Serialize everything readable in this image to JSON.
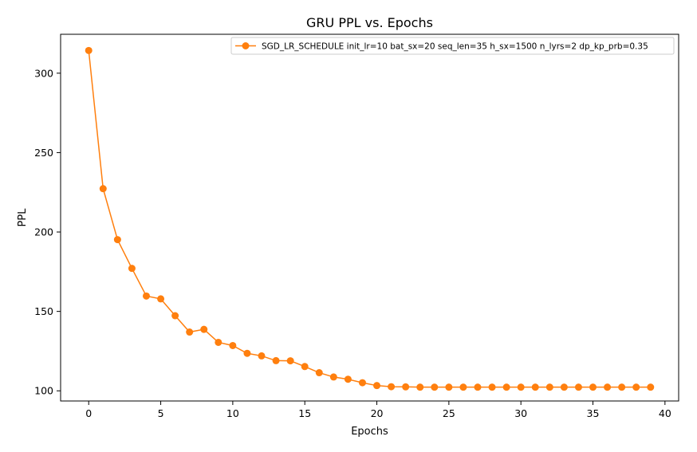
{
  "chart_data": {
    "type": "line",
    "title": "GRU PPL vs. Epochs",
    "xlabel": "Epochs",
    "ylabel": "PPL",
    "xlim": [
      -1.95,
      40.95
    ],
    "ylim": [
      93.6,
      324.5
    ],
    "xticks": [
      0,
      5,
      10,
      15,
      20,
      25,
      30,
      35,
      40
    ],
    "yticks": [
      100,
      150,
      200,
      250,
      300
    ],
    "grid": false,
    "legend_position": "top-right",
    "series": [
      {
        "name": "SGD_LR_SCHEDULE init_lr=10 bat_sx=20 seq_len=35 h_sx=1500 n_lyrs=2 dp_kp_prb=0.35",
        "color": "#ff7f0e",
        "marker": "circle",
        "x": [
          0,
          1,
          2,
          3,
          4,
          5,
          6,
          7,
          8,
          9,
          10,
          11,
          12,
          13,
          14,
          15,
          16,
          17,
          18,
          19,
          20,
          21,
          22,
          23,
          24,
          25,
          26,
          27,
          28,
          29,
          30,
          31,
          32,
          33,
          34,
          35,
          36,
          37,
          38,
          39
        ],
        "y": [
          314.3,
          227.3,
          195.2,
          177.1,
          159.7,
          157.9,
          147.3,
          137.0,
          138.7,
          130.5,
          128.5,
          123.6,
          122.0,
          119.0,
          118.9,
          115.3,
          111.4,
          108.7,
          107.3,
          105.1,
          103.3,
          102.6,
          102.5,
          102.3,
          102.3,
          102.3,
          102.3,
          102.3,
          102.3,
          102.3,
          102.3,
          102.3,
          102.3,
          102.3,
          102.3,
          102.3,
          102.3,
          102.3,
          102.3,
          102.3
        ]
      }
    ]
  }
}
